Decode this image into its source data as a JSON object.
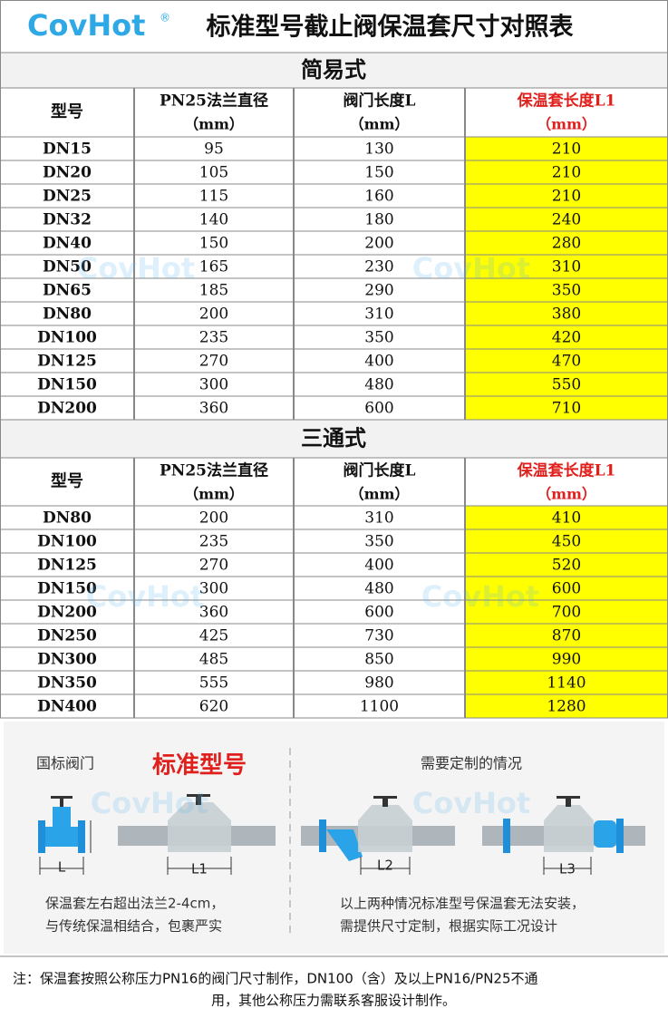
{
  "header": {
    "logo": "CovHot",
    "logo_mark": "®",
    "title": "标准型号截止阀保温套尺寸对照表"
  },
  "watermark": "CovHot",
  "sections": [
    {
      "title": "简易式",
      "columns": [
        {
          "label": "型号"
        },
        {
          "label": "PN25法兰直径",
          "unit": "（mm）"
        },
        {
          "label": "阀门长度L",
          "unit": "（mm）"
        },
        {
          "label": "保温套长度L1",
          "unit": "（mm）"
        }
      ],
      "rows": [
        [
          "DN15",
          "95",
          "130",
          "210"
        ],
        [
          "DN20",
          "105",
          "150",
          "210"
        ],
        [
          "DN25",
          "115",
          "160",
          "210"
        ],
        [
          "DN32",
          "140",
          "180",
          "240"
        ],
        [
          "DN40",
          "150",
          "200",
          "280"
        ],
        [
          "DN50",
          "165",
          "230",
          "310"
        ],
        [
          "DN65",
          "185",
          "290",
          "350"
        ],
        [
          "DN80",
          "200",
          "310",
          "380"
        ],
        [
          "DN100",
          "235",
          "350",
          "420"
        ],
        [
          "DN125",
          "270",
          "400",
          "470"
        ],
        [
          "DN150",
          "300",
          "480",
          "550"
        ],
        [
          "DN200",
          "360",
          "600",
          "710"
        ]
      ]
    },
    {
      "title": "三通式",
      "columns": [
        {
          "label": "型号"
        },
        {
          "label": "PN25法兰直径",
          "unit": "（mm）"
        },
        {
          "label": "阀门长度L",
          "unit": "（mm）"
        },
        {
          "label": "保温套长度L1",
          "unit": "（mm）"
        }
      ],
      "rows": [
        [
          "DN80",
          "200",
          "310",
          "410"
        ],
        [
          "DN100",
          "235",
          "350",
          "450"
        ],
        [
          "DN125",
          "270",
          "400",
          "520"
        ],
        [
          "DN150",
          "300",
          "480",
          "600"
        ],
        [
          "DN200",
          "360",
          "600",
          "700"
        ],
        [
          "DN250",
          "425",
          "730",
          "870"
        ],
        [
          "DN300",
          "485",
          "850",
          "990"
        ],
        [
          "DN350",
          "555",
          "980",
          "1140"
        ],
        [
          "DN400",
          "620",
          "1100",
          "1280"
        ]
      ]
    }
  ],
  "illustration": {
    "left_label": "国标阀门",
    "highlight": "标准型号",
    "right_label": "需要定制的情况",
    "dims": [
      "L",
      "L1",
      "L2",
      "L3"
    ],
    "left_caption": [
      "保温套左右超出法兰2-4cm，",
      "与传统保温相结合，包裹严实"
    ],
    "right_caption": [
      "以上两种情况标准型号保温套无法安装，",
      "需提供尺寸定制，根据实际工况设计"
    ]
  },
  "note": [
    "注：保温套按照公称压力PN16的阀门尺寸制作，DN100（含）及以上PN16/PN25不通",
    "用，其他公称压力需联系客服设计制作。"
  ]
}
